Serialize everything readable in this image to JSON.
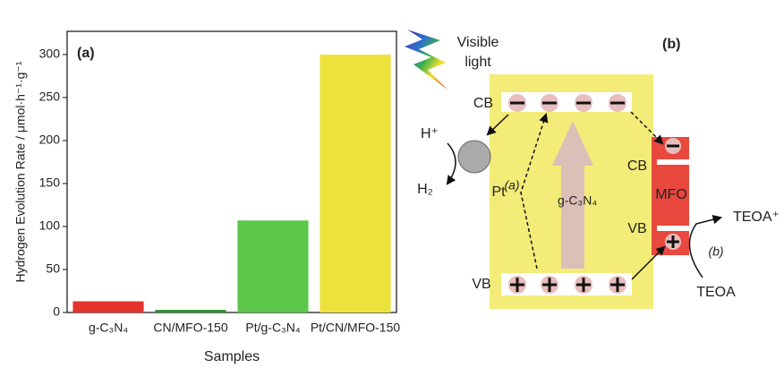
{
  "chart_data": {
    "type": "bar",
    "annotation": "(a)",
    "y_label": "Hydrogen Evolution Rate / μmol·h⁻¹·g⁻¹",
    "x_label": "Samples",
    "categories": [
      "g-C₃N₄",
      "CN/MFO-150",
      "Pt/g-C₃N₄",
      "Pt/CN/MFO-150"
    ],
    "values": [
      13,
      3,
      107,
      300
    ],
    "colors": [
      "#e5322d",
      "#2f8f2f",
      "#5cc64a",
      "#ede23c"
    ],
    "ylim": [
      0,
      327
    ],
    "yticks": [
      0,
      50,
      100,
      150,
      200,
      250,
      300
    ]
  },
  "diagram": {
    "label": "(b)",
    "light": [
      "Visible",
      "light"
    ],
    "cb_cn": "CB",
    "vb_cn": "VB",
    "h_plus": "H⁺",
    "h2": "H₂",
    "pt": "Pt",
    "path_a": "(a)",
    "cn": "g-C₃N₄",
    "cb_mfo": "CB",
    "vb_mfo": "VB",
    "mfo": "MFO",
    "teoa_plus": "TEOA⁺",
    "path_b": "(b)",
    "teoa": "TEOA"
  }
}
